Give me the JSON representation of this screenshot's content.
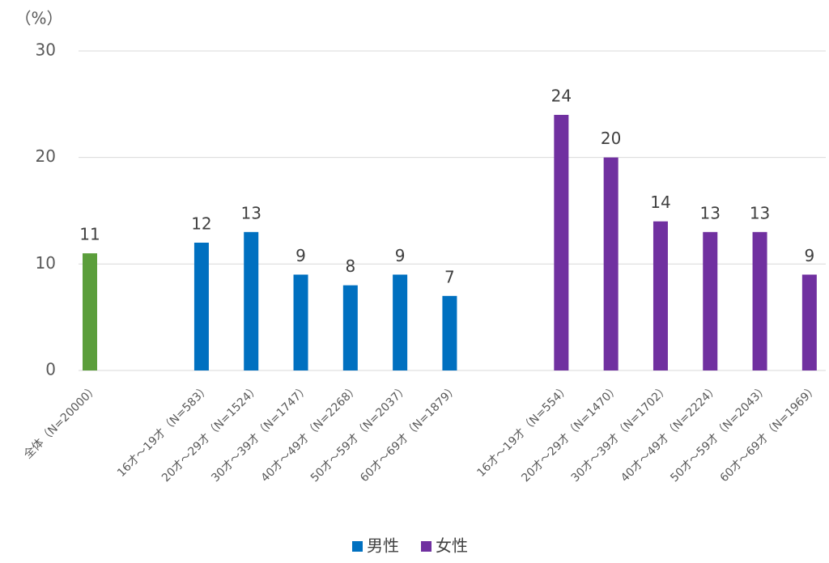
{
  "chart_data": {
    "type": "bar",
    "y_label": "（%）",
    "categories": [
      "全体（N=20000）",
      null,
      "16才～19才（N=583）",
      "20才～29才（N=1524）",
      "30才～39才（N=1747）",
      "40才～49才（N=2268）",
      "50才～59才（N=2037）",
      "60才～69才（N=1879）",
      null,
      "16才～19才（N=554）",
      "20才～29才（N=1470）",
      "30才～39才（N=1702）",
      "40才～49才（N=2224）",
      "50才～59才（N=2043）",
      "60才～69才（N=1969）"
    ],
    "series": [
      {
        "color": "#5b9e3b",
        "values": [
          11,
          null,
          null,
          null,
          null,
          null,
          null,
          null,
          null,
          null,
          null,
          null,
          null,
          null,
          null
        ]
      },
      {
        "name": "男性",
        "color": "#0070c0",
        "values": [
          null,
          null,
          12,
          13,
          9,
          8,
          9,
          7,
          null,
          null,
          null,
          null,
          null,
          null,
          null
        ]
      },
      {
        "name": "女性",
        "color": "#7030a0",
        "values": [
          null,
          null,
          null,
          null,
          null,
          null,
          null,
          null,
          null,
          24,
          20,
          14,
          13,
          13,
          9
        ]
      }
    ],
    "ylim": [
      0,
      30
    ],
    "yticks": [
      0,
      10,
      20,
      30
    ],
    "grid": true,
    "legend": "bottom"
  }
}
